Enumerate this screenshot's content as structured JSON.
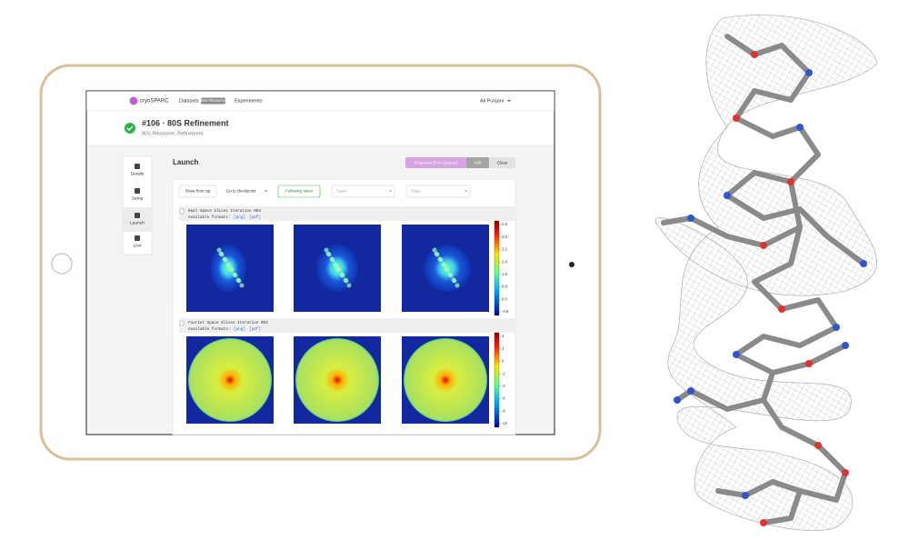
{
  "nav": {
    "brand": "cryoSPARC",
    "links": [
      "Datasets",
      "Experiments"
    ],
    "badge": "80S Ribosome",
    "user": "Ali Punjani"
  },
  "header": {
    "title": "#106 · 80S Refinement",
    "subtitle": "80S Ribosome, Refinement"
  },
  "sidebar": [
    "Details",
    "Setup",
    "Launch",
    "Live"
  ],
  "panel": {
    "title": "Launch",
    "buttons": [
      "Enqueue (0 in Queue)",
      "Kill",
      "Clear"
    ],
    "toolbar": [
      "Show from top",
      "Go to checkpoint",
      "Following latest"
    ],
    "filters": [
      "Types",
      "Flags"
    ]
  },
  "outputs": [
    {
      "title": "Real Space Slices Iteration 003",
      "formats_label": "Available formats:",
      "formats": [
        "[png]",
        "[pdf]"
      ],
      "colorbar_ticks": [
        "4.8",
        "4.0",
        "3.2",
        "2.4",
        "1.6",
        "0.8",
        "0.0",
        "-0.8"
      ]
    },
    {
      "title": "Fourier Space Slices Iteration 003",
      "formats_label": "Available formats:",
      "formats": [
        "[png]",
        "[pdf]"
      ],
      "colorbar_ticks": [
        "4",
        "2",
        "0",
        "-2",
        "-4",
        "-6",
        "-8",
        "-10"
      ]
    }
  ]
}
